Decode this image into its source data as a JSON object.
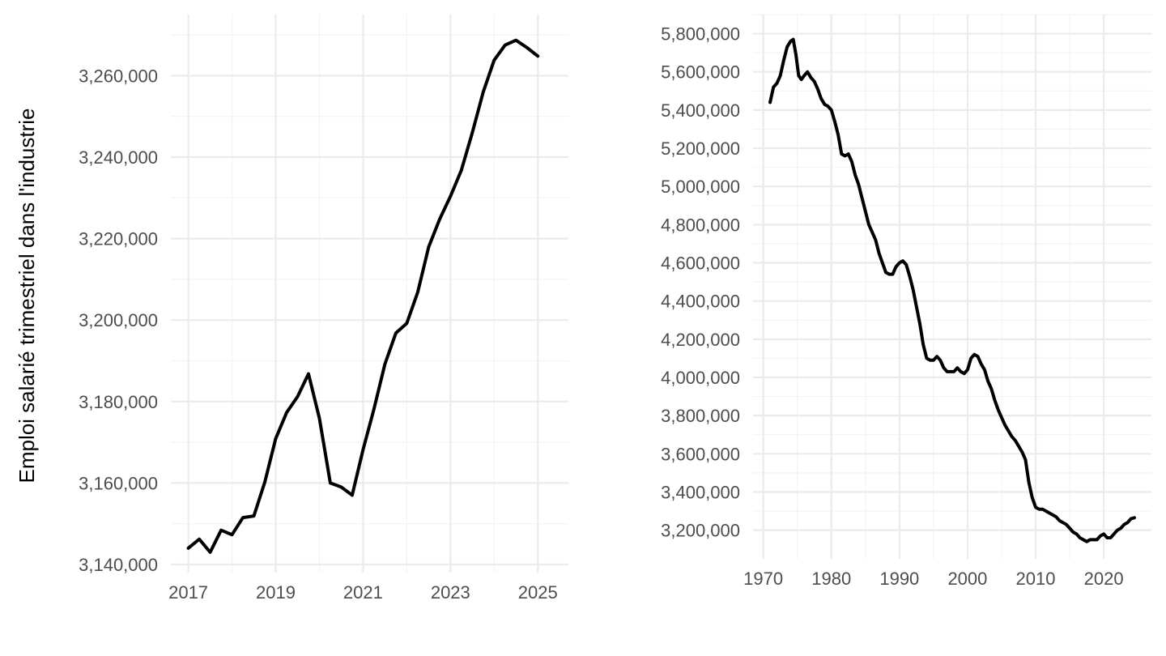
{
  "chart_data": [
    {
      "type": "line",
      "ylabel": "Emploi salarié trimestriel dans l'industrie",
      "xlabel": "",
      "xlim": [
        2016.6,
        2025.7
      ],
      "ylim": [
        3138000,
        3275000
      ],
      "x_ticks": [
        2017,
        2019,
        2021,
        2023,
        2025
      ],
      "x_tick_labels": [
        "2017",
        "2019",
        "2021",
        "2023",
        "2025"
      ],
      "y_ticks": [
        3140000,
        3160000,
        3180000,
        3200000,
        3220000,
        3240000,
        3260000
      ],
      "y_tick_labels": [
        "3,140,000",
        "3,160,000",
        "3,180,000",
        "3,200,000",
        "3,220,000",
        "3,240,000",
        "3,260,000"
      ],
      "grid": true,
      "series": [
        {
          "x": [
            2017.0,
            2017.25,
            2017.5,
            2017.75,
            2018.0,
            2018.25,
            2018.5,
            2018.75,
            2019.0,
            2019.25,
            2019.5,
            2019.75,
            2020.0,
            2020.25,
            2020.5,
            2020.75,
            2021.0,
            2021.25,
            2021.5,
            2021.75,
            2022.0,
            2022.25,
            2022.5,
            2022.75,
            2023.0,
            2023.25,
            2023.5,
            2023.75,
            2024.0,
            2024.25,
            2024.5,
            2024.75,
            2025.0
          ],
          "y": [
            3144000,
            3146200,
            3143000,
            3148400,
            3147300,
            3151500,
            3151900,
            3160200,
            3170900,
            3177300,
            3181200,
            3186800,
            3175900,
            3160000,
            3159000,
            3157000,
            3168200,
            3178200,
            3189200,
            3196800,
            3199200,
            3206800,
            3217900,
            3224700,
            3230400,
            3236800,
            3246000,
            3256000,
            3263800,
            3267500,
            3268700,
            3266900,
            3264800
          ]
        }
      ]
    },
    {
      "type": "line",
      "xlabel": "",
      "ylabel": "",
      "xlim": [
        1968.5,
        2027.0
      ],
      "ylim": [
        3050000,
        5900000
      ],
      "x_ticks": [
        1970,
        1980,
        1990,
        2000,
        2010,
        2020
      ],
      "x_tick_labels": [
        "1970",
        "1980",
        "1990",
        "2000",
        "2010",
        "2020"
      ],
      "y_ticks": [
        3200000,
        3400000,
        3600000,
        3800000,
        4000000,
        4200000,
        4400000,
        4600000,
        4800000,
        5000000,
        5200000,
        5400000,
        5600000,
        5800000
      ],
      "y_tick_labels": [
        "3,200,000",
        "3,400,000",
        "3,600,000",
        "3,800,000",
        "4,000,000",
        "4,200,000",
        "4,400,000",
        "4,600,000",
        "4,800,000",
        "5,000,000",
        "5,200,000",
        "5,400,000",
        "5,600,000",
        "5,800,000"
      ],
      "grid": true,
      "series": [
        {
          "x": [
            1971.0,
            1971.5,
            1972.0,
            1972.5,
            1973.0,
            1973.5,
            1974.0,
            1974.4,
            1974.8,
            1975.2,
            1975.6,
            1976.0,
            1976.5,
            1977.0,
            1977.5,
            1978.0,
            1978.5,
            1979.0,
            1979.5,
            1980.0,
            1980.5,
            1981.0,
            1981.5,
            1982.0,
            1982.5,
            1983.0,
            1983.5,
            1984.0,
            1984.5,
            1985.0,
            1985.5,
            1986.0,
            1986.5,
            1987.0,
            1987.5,
            1988.0,
            1988.5,
            1989.0,
            1989.5,
            1990.0,
            1990.5,
            1991.0,
            1991.5,
            1992.0,
            1992.5,
            1993.0,
            1993.5,
            1994.0,
            1994.5,
            1995.0,
            1995.5,
            1996.0,
            1996.5,
            1997.0,
            1997.5,
            1998.0,
            1998.5,
            1999.0,
            1999.5,
            2000.0,
            2000.5,
            2001.0,
            2001.5,
            2002.0,
            2002.5,
            2003.0,
            2003.5,
            2004.0,
            2004.5,
            2005.0,
            2005.5,
            2006.0,
            2006.5,
            2007.0,
            2007.5,
            2008.0,
            2008.5,
            2009.0,
            2009.5,
            2010.0,
            2010.5,
            2011.0,
            2011.5,
            2012.0,
            2012.5,
            2013.0,
            2013.5,
            2014.0,
            2014.5,
            2015.0,
            2015.5,
            2016.0,
            2016.5,
            2017.0,
            2017.5,
            2018.0,
            2018.5,
            2019.0,
            2019.5,
            2020.0,
            2020.5,
            2021.0,
            2021.5,
            2022.0,
            2022.5,
            2023.0,
            2023.5,
            2024.0,
            2024.5
          ],
          "y": [
            5440000,
            5520000,
            5540000,
            5580000,
            5660000,
            5730000,
            5760000,
            5770000,
            5690000,
            5580000,
            5560000,
            5580000,
            5600000,
            5570000,
            5550000,
            5510000,
            5460000,
            5430000,
            5420000,
            5400000,
            5340000,
            5270000,
            5170000,
            5160000,
            5170000,
            5130000,
            5060000,
            5010000,
            4940000,
            4870000,
            4800000,
            4760000,
            4720000,
            4650000,
            4600000,
            4550000,
            4540000,
            4540000,
            4580000,
            4600000,
            4610000,
            4590000,
            4530000,
            4460000,
            4370000,
            4280000,
            4170000,
            4100000,
            4090000,
            4090000,
            4110000,
            4090000,
            4050000,
            4030000,
            4030000,
            4030000,
            4050000,
            4030000,
            4020000,
            4040000,
            4100000,
            4120000,
            4110000,
            4070000,
            4040000,
            3980000,
            3940000,
            3880000,
            3830000,
            3790000,
            3750000,
            3720000,
            3690000,
            3670000,
            3640000,
            3610000,
            3570000,
            3450000,
            3370000,
            3320000,
            3310000,
            3310000,
            3300000,
            3290000,
            3280000,
            3270000,
            3250000,
            3240000,
            3230000,
            3210000,
            3190000,
            3180000,
            3160000,
            3150000,
            3140000,
            3150000,
            3150000,
            3150000,
            3170000,
            3180000,
            3160000,
            3160000,
            3180000,
            3200000,
            3210000,
            3230000,
            3240000,
            3260000,
            3265000
          ]
        }
      ]
    }
  ]
}
